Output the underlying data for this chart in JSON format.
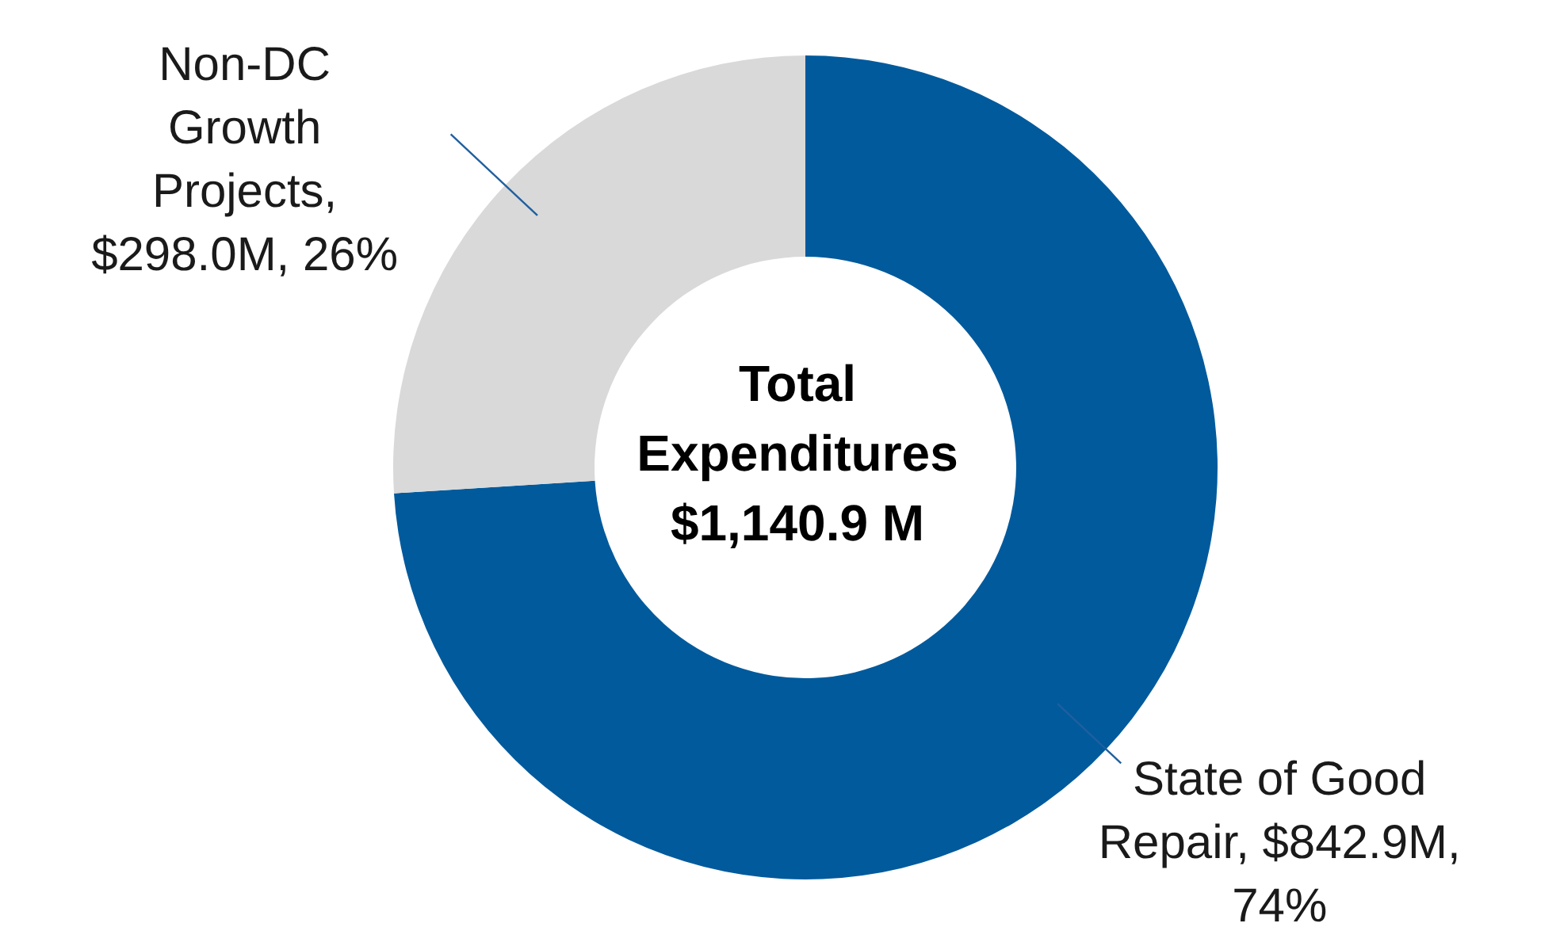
{
  "chart_data": {
    "type": "donut",
    "title": "Total Expenditures $1,140.9 M",
    "categories": [
      "State of Good Repair, $842.9M, 74%",
      "Non-DC Growth Projects, $298.0M, 26%"
    ],
    "values": [
      74,
      26
    ],
    "colors": [
      "#005a9c",
      "#d9d9d9"
    ],
    "legend": false
  }
}
